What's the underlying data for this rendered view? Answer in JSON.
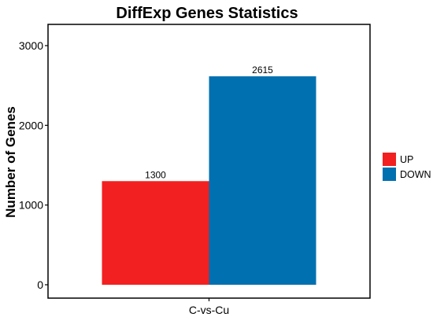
{
  "chart_data": {
    "type": "bar",
    "title": "DiffExp Genes Statistics",
    "xlabel": "",
    "ylabel": "Number of Genes",
    "categories": [
      "C-vs-Cu"
    ],
    "series": [
      {
        "name": "UP",
        "values": [
          1300
        ],
        "color": "#f22020"
      },
      {
        "name": "DOWN",
        "values": [
          2615
        ],
        "color": "#0070b0"
      }
    ],
    "ylim": [
      0,
      3300
    ],
    "yticks": [
      0,
      1000,
      2000,
      3000
    ],
    "grid": false,
    "legend_position": "right",
    "data_labels": true
  }
}
